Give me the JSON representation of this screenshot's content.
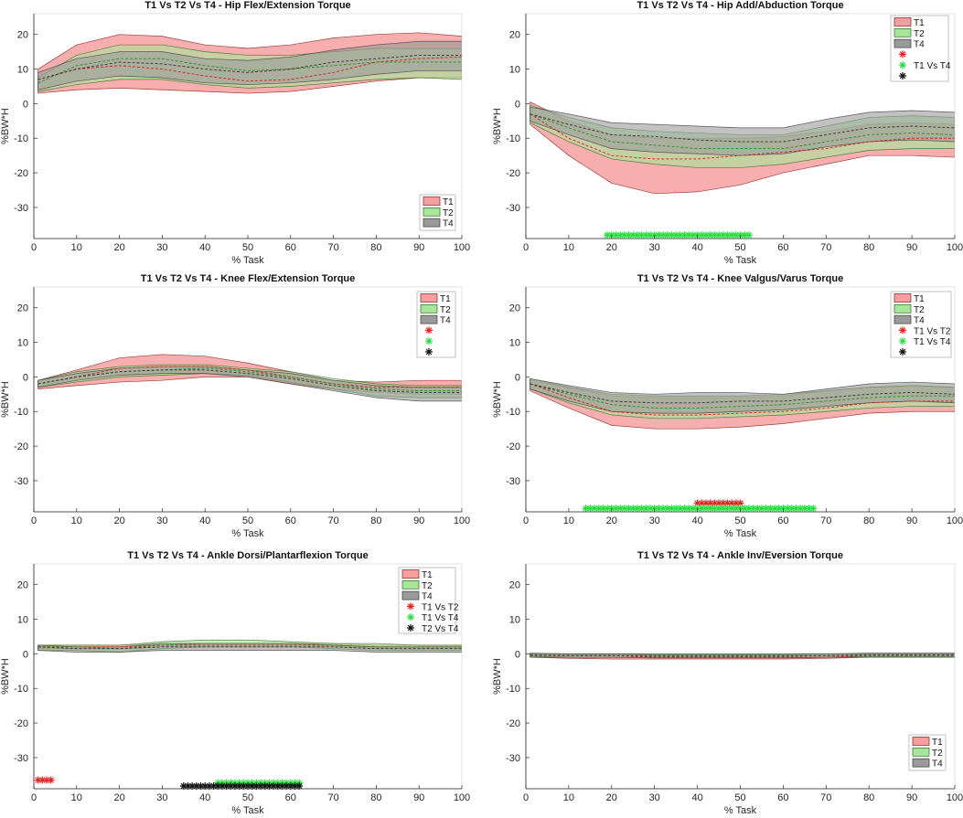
{
  "figure": {
    "background": "#ffffff",
    "axis_color": "#262626"
  },
  "styles": {
    "T1": {
      "fill": "#f4a0a0",
      "stroke": "#8b1a1a",
      "mean": "#d62020"
    },
    "T2": {
      "fill": "#a6e69a",
      "stroke": "#2e6b1e",
      "mean": "#2e8b22"
    },
    "T4": {
      "fill": "#9a9a9a",
      "stroke": "#3a3a3a",
      "mean": "#333333"
    },
    "overlap": "#556b2f",
    "markers": {
      "T1 Vs T2": "#e8211e",
      "T1 Vs T4": "#22e03a",
      "T2 Vs T4": "#111111"
    }
  },
  "chart_data": [
    {
      "type": "area",
      "title": "T1 Vs T2 Vs T4 - Hip Flex/Extension Torque",
      "xlabel": "% Task",
      "ylabel": "%BW*H",
      "xlim": [
        0,
        100
      ],
      "ylim": [
        -39,
        26
      ],
      "xticks": [
        0,
        10,
        20,
        30,
        40,
        50,
        60,
        70,
        80,
        90,
        100
      ],
      "yticks": [
        -30,
        -20,
        -10,
        0,
        10,
        20
      ],
      "x": [
        1,
        10,
        20,
        30,
        40,
        50,
        60,
        70,
        80,
        90,
        100
      ],
      "series": [
        {
          "name": "T1",
          "mean": [
            7,
            10,
            11,
            10,
            8,
            6.5,
            7,
            9,
            12,
            13,
            13.5
          ],
          "upper": [
            10,
            17,
            20,
            19.5,
            17,
            16,
            17,
            19,
            20,
            20.5,
            19.5
          ],
          "lower": [
            3,
            4,
            4.5,
            4,
            3.5,
            3,
            3.5,
            5,
            6.5,
            7.5,
            7.5
          ]
        },
        {
          "name": "T2",
          "mean": [
            6,
            11,
            13,
            13,
            11,
            9.5,
            10,
            11,
            12,
            12,
            12
          ],
          "upper": [
            7.5,
            14,
            17,
            17,
            15,
            14,
            14,
            15,
            16,
            16,
            16
          ],
          "lower": [
            3.5,
            5.5,
            7,
            7,
            5.5,
            4.5,
            5,
            6,
            7,
            7.5,
            7
          ]
        },
        {
          "name": "T4",
          "mean": [
            7,
            10,
            12,
            11.5,
            10,
            9,
            10,
            12,
            13,
            14,
            14
          ],
          "upper": [
            9,
            13,
            15,
            15,
            13,
            12.5,
            13.5,
            15.5,
            17,
            18,
            18
          ],
          "lower": [
            4,
            6.5,
            8,
            7.5,
            6,
            5.5,
            6,
            7,
            8.5,
            9.5,
            9.5
          ]
        }
      ],
      "significance": [],
      "legend": {
        "location": "bottom-right",
        "entries": [
          "T1",
          "T2",
          "T4"
        ]
      }
    },
    {
      "type": "area",
      "title": "T1 Vs T2 Vs T4 - Hip Add/Abduction Torque",
      "xlabel": "% Task",
      "ylabel": "%BW*H",
      "xlim": [
        0,
        100
      ],
      "ylim": [
        -39,
        26
      ],
      "xticks": [
        0,
        10,
        20,
        30,
        40,
        50,
        60,
        70,
        80,
        90,
        100
      ],
      "yticks": [
        -30,
        -20,
        -10,
        0,
        10,
        20
      ],
      "x": [
        1,
        10,
        20,
        30,
        40,
        50,
        60,
        70,
        80,
        90,
        100
      ],
      "series": [
        {
          "name": "T1",
          "mean": [
            -3,
            -10,
            -15,
            -16,
            -16,
            -15,
            -14,
            -13,
            -11,
            -10,
            -10
          ],
          "upper": [
            0.5,
            -5,
            -9,
            -10,
            -10,
            -10,
            -9.5,
            -8,
            -6,
            -5.5,
            -6
          ],
          "lower": [
            -6,
            -15,
            -23,
            -26,
            -25.5,
            -23.5,
            -20,
            -17.5,
            -15,
            -15,
            -15.5
          ]
        },
        {
          "name": "T2",
          "mean": [
            -3,
            -7,
            -11,
            -12,
            -13,
            -13,
            -13,
            -11,
            -9,
            -8.5,
            -9
          ],
          "upper": [
            -0.5,
            -4,
            -7,
            -8,
            -8.5,
            -9,
            -9,
            -6.5,
            -4,
            -3.5,
            -4
          ],
          "lower": [
            -5.5,
            -11,
            -16,
            -17.5,
            -18.5,
            -18.5,
            -17.5,
            -15.5,
            -13.5,
            -13,
            -13
          ]
        },
        {
          "name": "T4",
          "mean": [
            -3,
            -6,
            -9,
            -9.5,
            -10.5,
            -11,
            -11,
            -9,
            -7,
            -6.5,
            -7
          ],
          "upper": [
            -1,
            -3,
            -5.5,
            -6,
            -6.5,
            -7,
            -7,
            -4.5,
            -2.5,
            -2,
            -2.5
          ],
          "lower": [
            -5,
            -9,
            -13,
            -14,
            -14.5,
            -15,
            -14.5,
            -12.5,
            -11,
            -10.5,
            -11
          ]
        }
      ],
      "significance": [
        {
          "label": "T1 Vs T4",
          "from": 19,
          "to": 52,
          "y": -38
        }
      ],
      "legend": {
        "location": "top-right",
        "entries": [
          "T1",
          "T2",
          "T4",
          "*",
          "T1 Vs T4",
          "*"
        ]
      }
    },
    {
      "type": "area",
      "title": "T1 Vs T2 Vs T4 - Knee Flex/Extension Torque",
      "xlabel": "% Task",
      "ylabel": "%BW*H",
      "xlim": [
        0,
        100
      ],
      "ylim": [
        -39,
        26
      ],
      "xticks": [
        0,
        10,
        20,
        30,
        40,
        50,
        60,
        70,
        80,
        90,
        100
      ],
      "yticks": [
        -30,
        -20,
        -10,
        0,
        10,
        20
      ],
      "x": [
        1,
        10,
        20,
        30,
        40,
        50,
        60,
        70,
        80,
        90,
        100
      ],
      "series": [
        {
          "name": "T1",
          "mean": [
            -2,
            0,
            2.5,
            3,
            3,
            2,
            0,
            -2,
            -3,
            -3,
            -3
          ],
          "upper": [
            -1,
            2,
            5.5,
            6.5,
            6,
            4,
            1.5,
            -1,
            -1.5,
            -1,
            -1
          ],
          "lower": [
            -3.5,
            -2.5,
            -1.5,
            -1,
            0,
            0,
            -2,
            -3.5,
            -4.5,
            -5,
            -5
          ]
        },
        {
          "name": "T2",
          "mean": [
            -2,
            0,
            1.5,
            2,
            2.5,
            1.5,
            0,
            -2,
            -3.5,
            -4,
            -4
          ],
          "upper": [
            -1,
            1.5,
            3,
            3.5,
            3.5,
            2.5,
            1.5,
            -0.5,
            -2,
            -2.5,
            -2.5
          ],
          "lower": [
            -3,
            -1.5,
            0,
            0.5,
            1,
            0.5,
            -1.5,
            -3.5,
            -5.5,
            -6,
            -6
          ]
        },
        {
          "name": "T4",
          "mean": [
            -2,
            0,
            1.5,
            2,
            2,
            1,
            -0.5,
            -2.5,
            -4,
            -4.5,
            -4.5
          ],
          "upper": [
            -1,
            1,
            2.5,
            3,
            3,
            2,
            1,
            -1,
            -2.5,
            -3,
            -3
          ],
          "lower": [
            -3,
            -1,
            0.5,
            1,
            1,
            0,
            -2,
            -4,
            -6,
            -7,
            -7
          ]
        }
      ],
      "significance": [],
      "legend": {
        "location": "top-right",
        "entries": [
          "T1",
          "T2",
          "T4",
          "*",
          "*",
          "*"
        ]
      }
    },
    {
      "type": "area",
      "title": "T1 Vs T2 Vs T4 - Knee Valgus/Varus Torque",
      "xlabel": "% Task",
      "ylabel": "%BW*H",
      "xlim": [
        0,
        100
      ],
      "ylim": [
        -39,
        26
      ],
      "xticks": [
        0,
        10,
        20,
        30,
        40,
        50,
        60,
        70,
        80,
        90,
        100
      ],
      "yticks": [
        -30,
        -20,
        -10,
        0,
        10,
        20
      ],
      "x": [
        1,
        10,
        20,
        30,
        40,
        50,
        60,
        70,
        80,
        90,
        100
      ],
      "series": [
        {
          "name": "T1",
          "mean": [
            -2,
            -6,
            -10,
            -11,
            -11,
            -10.5,
            -10,
            -9,
            -7.5,
            -7,
            -7
          ],
          "upper": [
            -1,
            -3,
            -5.5,
            -6,
            -6,
            -6,
            -5.5,
            -4,
            -3,
            -2.5,
            -3
          ],
          "lower": [
            -4,
            -9,
            -14,
            -15,
            -15,
            -14.5,
            -13.5,
            -12,
            -10.5,
            -10,
            -10
          ]
        },
        {
          "name": "T2",
          "mean": [
            -2,
            -5,
            -8,
            -9,
            -9,
            -8.5,
            -8,
            -7,
            -6,
            -5.5,
            -5.5
          ],
          "upper": [
            -0.5,
            -3,
            -5,
            -5.5,
            -5.5,
            -5.5,
            -5,
            -4,
            -3,
            -2.5,
            -3
          ],
          "lower": [
            -3.5,
            -7.5,
            -11,
            -12,
            -12,
            -11.5,
            -11,
            -10,
            -9,
            -8.5,
            -8.5
          ]
        },
        {
          "name": "T4",
          "mean": [
            -2,
            -4.5,
            -7,
            -7.5,
            -7.5,
            -7,
            -7,
            -6,
            -5,
            -4.5,
            -5
          ],
          "upper": [
            -0.5,
            -2.5,
            -4.5,
            -5,
            -4.5,
            -4.5,
            -5,
            -3.5,
            -2,
            -1.5,
            -2
          ],
          "lower": [
            -3.5,
            -7,
            -10,
            -10.5,
            -10.5,
            -10,
            -9.5,
            -8.5,
            -7.5,
            -7,
            -7.5
          ]
        }
      ],
      "significance": [
        {
          "label": "T1 Vs T2",
          "from": 40,
          "to": 50,
          "y": -36.5
        },
        {
          "label": "T1 Vs T4",
          "from": 14,
          "to": 67,
          "y": -38
        }
      ],
      "legend": {
        "location": "top-right",
        "entries": [
          "T1",
          "T2",
          "T4",
          "T1 Vs T2",
          "T1 Vs T4",
          "*"
        ]
      }
    },
    {
      "type": "area",
      "title": "T1 Vs T2 Vs T4 - Ankle Dorsi/Plantarflexion Torque",
      "xlabel": "% Task",
      "ylabel": "%BW*H",
      "xlim": [
        0,
        100
      ],
      "ylim": [
        -39,
        26
      ],
      "xticks": [
        0,
        10,
        20,
        30,
        40,
        50,
        60,
        70,
        80,
        90,
        100
      ],
      "yticks": [
        -30,
        -20,
        -10,
        0,
        10,
        20
      ],
      "x": [
        1,
        10,
        20,
        30,
        40,
        50,
        60,
        70,
        80,
        90,
        100
      ],
      "series": [
        {
          "name": "T1",
          "mean": [
            2,
            2,
            2,
            2.5,
            2.5,
            2.5,
            2.5,
            2.5,
            2,
            2,
            2
          ],
          "upper": [
            2.5,
            2.5,
            2.5,
            3,
            3,
            3,
            3,
            3,
            2.5,
            2.5,
            2.5
          ],
          "lower": [
            1.5,
            1.5,
            1.5,
            2,
            2,
            2,
            2,
            2,
            1.5,
            1.5,
            1.5
          ]
        },
        {
          "name": "T2",
          "mean": [
            2,
            2,
            1.5,
            2.5,
            3,
            3,
            3,
            2.5,
            2,
            2,
            2
          ],
          "upper": [
            2.5,
            2.5,
            2.5,
            3.5,
            4,
            4,
            3.5,
            3,
            3,
            2.5,
            2.5
          ],
          "lower": [
            1,
            1,
            0.5,
            1.5,
            2,
            2,
            2,
            1.5,
            1,
            1,
            1
          ]
        },
        {
          "name": "T4",
          "mean": [
            2,
            1.5,
            1.5,
            2,
            2,
            2,
            2,
            2,
            1.5,
            1.5,
            1.5
          ],
          "upper": [
            2.5,
            2,
            2,
            3,
            3,
            3,
            3,
            2.5,
            2,
            2,
            2
          ],
          "lower": [
            1,
            0.5,
            0.5,
            1,
            1,
            1,
            1,
            1,
            0.5,
            0.5,
            0.5
          ]
        }
      ],
      "significance": [
        {
          "label": "T1 Vs T2",
          "from": 1,
          "to": 4,
          "y": -36.5
        },
        {
          "label": "T1 Vs T4",
          "from": 43,
          "to": 62,
          "y": -37.3
        },
        {
          "label": "T2 Vs T4",
          "from": 35,
          "to": 62,
          "y": -38.2
        }
      ],
      "legend": {
        "location": "top-right",
        "entries": [
          "T1",
          "T2",
          "T4",
          "T1 Vs T2",
          "T1 Vs T4",
          "T2 Vs T4"
        ]
      }
    },
    {
      "type": "area",
      "title": "T1 Vs T2 Vs T4 - Ankle Inv/Eversion Torque",
      "xlabel": "% Task",
      "ylabel": "%BW*H",
      "xlim": [
        0,
        100
      ],
      "ylim": [
        -39,
        26
      ],
      "xticks": [
        0,
        10,
        20,
        30,
        40,
        50,
        60,
        70,
        80,
        90,
        100
      ],
      "yticks": [
        -30,
        -20,
        -10,
        0,
        10,
        20
      ],
      "x": [
        1,
        10,
        20,
        30,
        40,
        50,
        60,
        70,
        80,
        90,
        100
      ],
      "series": [
        {
          "name": "T1",
          "mean": [
            -0.5,
            -0.5,
            -0.5,
            -1,
            -1,
            -1,
            -1,
            -1,
            -0.5,
            -0.5,
            -0.5
          ],
          "upper": [
            0,
            0,
            0,
            -0.5,
            -0.5,
            -0.5,
            -0.5,
            -0.5,
            0,
            0,
            0
          ],
          "lower": [
            -1,
            -1.3,
            -1.5,
            -1.5,
            -1.5,
            -1.5,
            -1.5,
            -1.3,
            -1,
            -1,
            -1
          ]
        },
        {
          "name": "T2",
          "mean": [
            -0.5,
            -0.5,
            -0.5,
            -0.5,
            -0.5,
            -0.5,
            -0.5,
            -0.5,
            -0.5,
            -0.5,
            -0.5
          ],
          "upper": [
            0,
            0,
            0,
            0,
            0,
            0,
            0,
            0,
            0,
            0,
            0
          ],
          "lower": [
            -1,
            -1,
            -1,
            -1,
            -1,
            -1,
            -1,
            -1,
            -1,
            -1,
            -1
          ]
        },
        {
          "name": "T4",
          "mean": [
            -0.3,
            -0.5,
            -0.5,
            -0.7,
            -0.7,
            -0.7,
            -0.7,
            -0.5,
            -0.3,
            -0.3,
            -0.3
          ],
          "upper": [
            0.2,
            0,
            0,
            -0.2,
            -0.2,
            -0.2,
            -0.2,
            0,
            0.2,
            0.2,
            0.2
          ],
          "lower": [
            -0.8,
            -1,
            -1,
            -1.2,
            -1.2,
            -1.2,
            -1.2,
            -1,
            -0.8,
            -0.8,
            -0.8
          ]
        }
      ],
      "significance": [],
      "legend": {
        "location": "bottom-right",
        "entries": [
          "T1",
          "T2",
          "T4"
        ]
      }
    }
  ]
}
